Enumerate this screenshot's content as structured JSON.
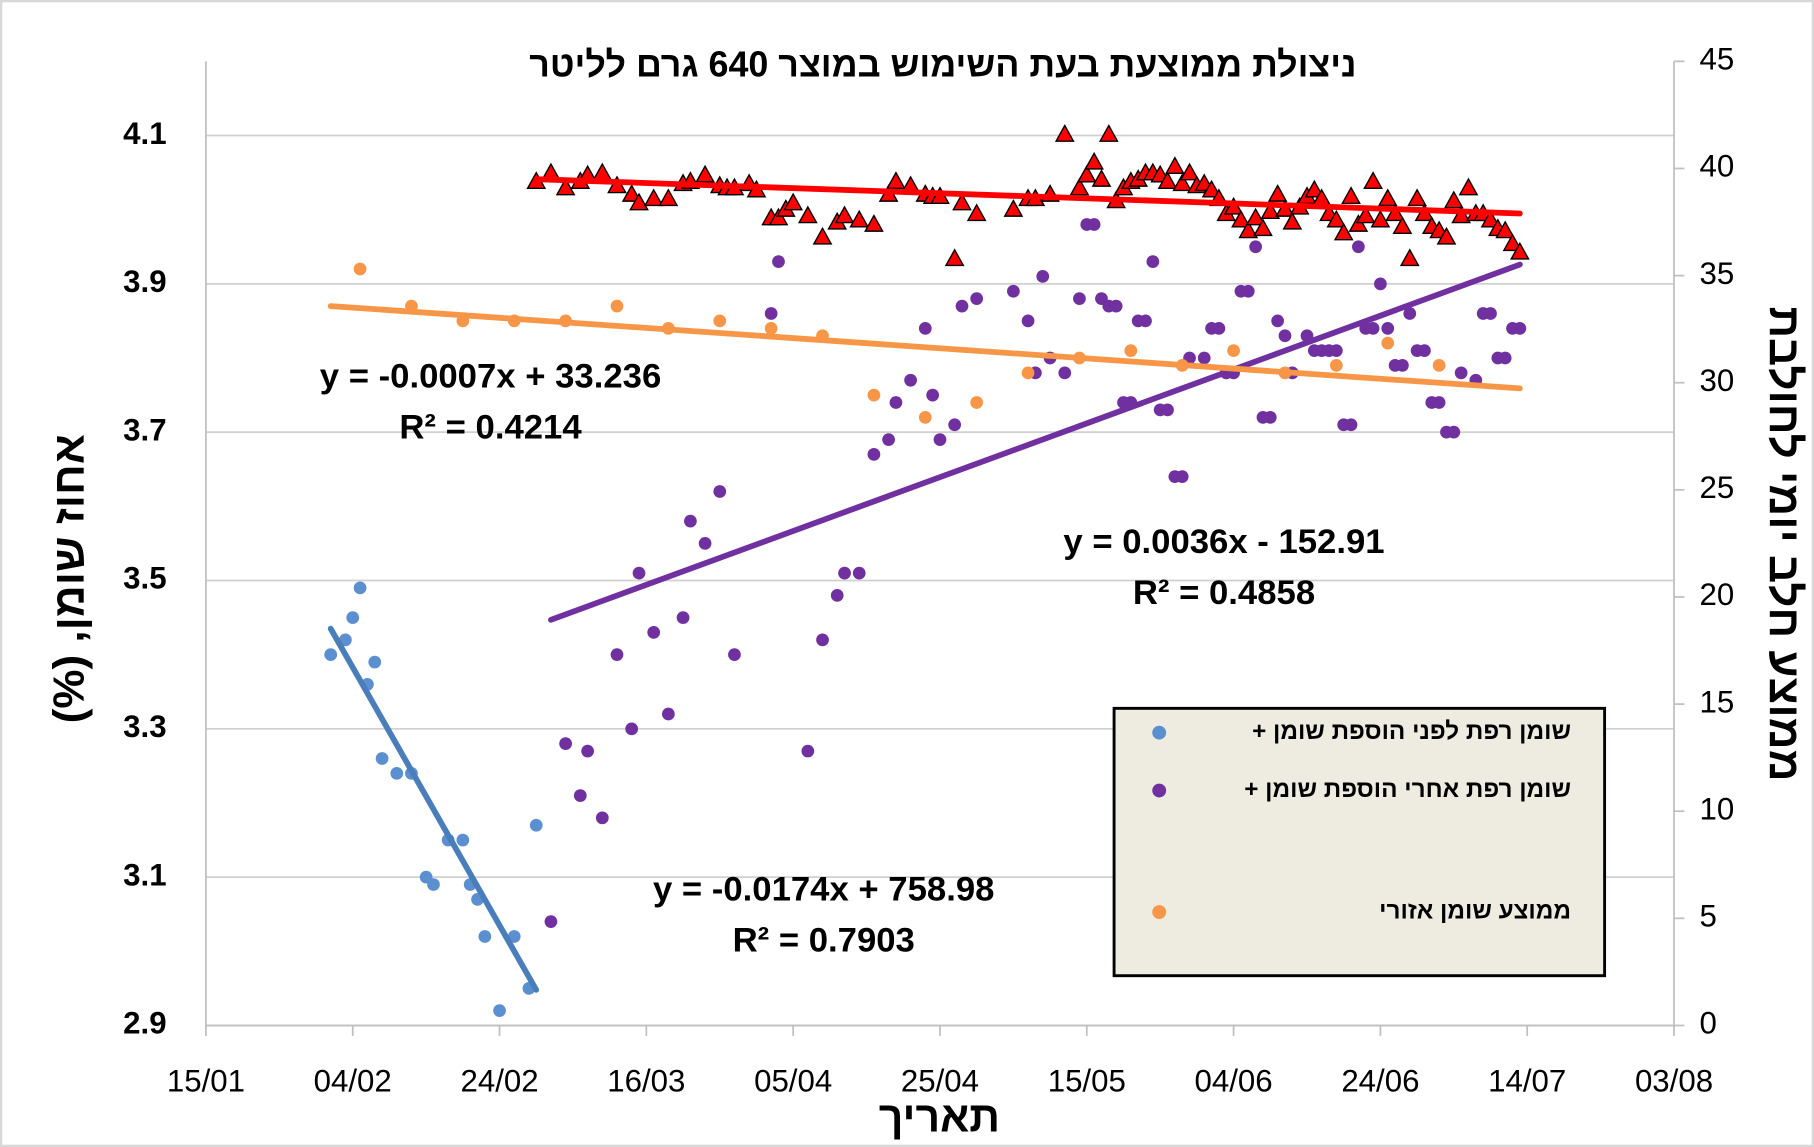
{
  "chart_data": {
    "type": "scatter",
    "title": "ניצולת ממוצעת בעת השימוש במוצר 640 גרם לליטר",
    "xlabel": "תאריך",
    "ylabel": "אחוז שומן, (%)",
    "y2label": "ממוצע חלב יומי לחולבת",
    "xlim": [
      "15/01",
      "03/08"
    ],
    "xticks": [
      "15/01",
      "04/02",
      "24/02",
      "16/03",
      "05/04",
      "25/04",
      "15/05",
      "04/06",
      "24/06",
      "14/07",
      "03/08"
    ],
    "ylim": [
      2.9,
      4.2
    ],
    "yticks": [
      2.9,
      3.1,
      3.3,
      3.5,
      3.7,
      3.9,
      4.1
    ],
    "y2lim": [
      0,
      45
    ],
    "y2ticks": [
      0,
      5,
      10,
      15,
      20,
      25,
      30,
      35,
      40,
      45
    ],
    "grid": true,
    "series": [
      {
        "name": "שומן רפת לפני הוספת שומן +",
        "color": "#5b8fd0",
        "marker": "circle",
        "x": [
          "01/02",
          "03/02",
          "04/02",
          "05/02",
          "06/02",
          "07/02",
          "08/02",
          "10/02",
          "12/02",
          "17/02",
          "14/02",
          "15/02",
          "19/02",
          "20/02",
          "21/02",
          "22/02",
          "24/02",
          "26/02",
          "28/02",
          "01/03"
        ],
        "values": [
          3.4,
          3.42,
          3.45,
          3.49,
          3.36,
          3.39,
          3.26,
          3.24,
          3.24,
          3.15,
          3.1,
          3.09,
          3.15,
          3.09,
          3.07,
          3.02,
          2.92,
          3.02,
          2.95,
          3.17
        ],
        "trendline": {
          "color": "#4a7ebb",
          "x": [
            "01/02",
            "01/03"
          ],
          "values": [
            3.435,
            2.948
          ],
          "equation": "y = -0.0174x + 758.98",
          "r2": "R² = 0.7903"
        }
      },
      {
        "name": "שומן רפת אחרי הוספת שומן +",
        "color": "#7030a0",
        "marker": "circle",
        "x": [
          "03/03",
          "05/03",
          "07/03",
          "08/03",
          "10/03",
          "12/03",
          "14/03",
          "15/03",
          "17/03",
          "19/03",
          "21/03",
          "22/03",
          "24/03",
          "26/03",
          "28/03",
          "02/04",
          "03/04",
          "07/04",
          "09/04",
          "11/04",
          "12/04",
          "14/04",
          "16/04",
          "18/04",
          "19/04",
          "21/04",
          "23/04",
          "24/04",
          "25/04",
          "27/04",
          "28/04",
          "30/04",
          "05/05",
          "07/05",
          "08/05",
          "09/05",
          "10/05",
          "12/05",
          "14/05",
          "15/05",
          "16/05",
          "17/05",
          "18/05",
          "19/05",
          "20/05",
          "21/05",
          "22/05",
          "23/05",
          "24/05",
          "25/05",
          "26/05",
          "27/05",
          "28/05",
          "29/05",
          "31/05",
          "01/06",
          "02/06",
          "03/06",
          "04/06",
          "05/06",
          "06/06",
          "07/06",
          "08/06",
          "09/06",
          "10/06",
          "11/06",
          "12/06",
          "14/06",
          "15/06",
          "16/06",
          "17/06",
          "18/06",
          "19/06",
          "20/06",
          "21/06",
          "22/06",
          "23/06",
          "24/06",
          "25/06",
          "26/06",
          "27/06",
          "28/06",
          "29/06",
          "30/06",
          "01/07",
          "02/07",
          "03/07",
          "04/07",
          "05/07",
          "07/07",
          "08/07",
          "09/07",
          "10/07",
          "11/07",
          "12/07",
          "13/07"
        ],
        "values": [
          3.04,
          3.28,
          3.21,
          3.27,
          3.18,
          3.4,
          3.3,
          3.51,
          3.43,
          3.32,
          3.45,
          3.58,
          3.55,
          3.62,
          3.4,
          3.86,
          3.93,
          3.27,
          3.42,
          3.48,
          3.51,
          3.51,
          3.67,
          3.69,
          3.74,
          3.77,
          3.84,
          3.75,
          3.69,
          3.71,
          3.87,
          3.88,
          3.89,
          3.85,
          3.78,
          3.91,
          3.8,
          3.78,
          3.88,
          3.98,
          3.98,
          3.88,
          3.87,
          3.87,
          3.74,
          3.74,
          3.85,
          3.85,
          3.93,
          3.73,
          3.73,
          3.64,
          3.64,
          3.8,
          3.8,
          3.84,
          3.84,
          3.78,
          3.78,
          3.89,
          3.89,
          3.95,
          3.72,
          3.72,
          3.85,
          3.83,
          3.78,
          3.83,
          3.81,
          3.81,
          3.81,
          3.81,
          3.71,
          3.71,
          3.95,
          3.84,
          3.84,
          3.9,
          3.84,
          3.79,
          3.79,
          3.86,
          3.81,
          3.81,
          3.74,
          3.74,
          3.7,
          3.7,
          3.78,
          3.77,
          3.86,
          3.86,
          3.8,
          3.8,
          3.84,
          3.84
        ],
        "trendline": {
          "color": "#7030a0",
          "x": [
            "03/03",
            "13/07"
          ],
          "values": [
            3.447,
            3.926
          ],
          "equation": "y = 0.0036x - 152.91",
          "r2": "R² = 0.4858"
        }
      },
      {
        "name": "ממוצע שומן אזורי",
        "color": "#f79646",
        "marker": "circle",
        "x": [
          "05/02",
          "12/02",
          "19/02",
          "26/02",
          "05/03",
          "12/03",
          "19/03",
          "26/03",
          "02/04",
          "09/04",
          "16/04",
          "23/04",
          "30/04",
          "07/05",
          "14/05",
          "21/05",
          "28/05",
          "04/06",
          "11/06",
          "18/06",
          "25/06",
          "02/07"
        ],
        "values": [
          3.92,
          3.87,
          3.85,
          3.85,
          3.85,
          3.87,
          3.84,
          3.85,
          3.84,
          3.83,
          3.75,
          3.72,
          3.74,
          3.78,
          3.8,
          3.81,
          3.79,
          3.81,
          3.78,
          3.79,
          3.82,
          3.79
        ],
        "trendline": {
          "color": "#f79646",
          "x": [
            "01/02",
            "13/07"
          ],
          "values": [
            3.87,
            3.759
          ],
          "equation": "y = -0.0007x + 33.236",
          "r2": "R² = 0.4214"
        }
      },
      {
        "color": "#ff0000",
        "marker": "triangle",
        "axis": "y2",
        "x": [
          "01/03",
          "03/03",
          "05/03",
          "07/03",
          "08/03",
          "10/03",
          "12/03",
          "14/03",
          "15/03",
          "17/03",
          "19/03",
          "21/03",
          "22/03",
          "24/03",
          "26/03",
          "27/03",
          "28/03",
          "30/03",
          "31/03",
          "02/04",
          "03/04",
          "04/04",
          "05/04",
          "07/04",
          "09/04",
          "11/04",
          "12/04",
          "14/04",
          "16/04",
          "18/04",
          "19/04",
          "21/04",
          "23/04",
          "24/04",
          "25/04",
          "27/04",
          "28/04",
          "30/04",
          "05/05",
          "07/05",
          "08/05",
          "10/05",
          "12/05",
          "14/05",
          "15/05",
          "16/05",
          "17/05",
          "18/05",
          "19/05",
          "20/05",
          "21/05",
          "22/05",
          "23/05",
          "24/05",
          "25/05",
          "26/05",
          "27/05",
          "28/05",
          "29/05",
          "30/05",
          "31/05",
          "01/06",
          "02/06",
          "03/06",
          "04/06",
          "05/06",
          "06/06",
          "07/06",
          "08/06",
          "09/06",
          "10/06",
          "11/06",
          "12/06",
          "13/06",
          "14/06",
          "15/06",
          "16/06",
          "17/06",
          "18/06",
          "19/06",
          "20/06",
          "21/06",
          "22/06",
          "23/06",
          "24/06",
          "25/06",
          "26/06",
          "27/06",
          "28/06",
          "29/06",
          "30/06",
          "01/07",
          "02/07",
          "03/07",
          "04/07",
          "05/07",
          "06/07",
          "07/07",
          "08/07",
          "09/07",
          "10/07",
          "11/07",
          "12/07",
          "13/07"
        ],
        "values": [
          39.4,
          39.8,
          39.1,
          39.4,
          39.7,
          39.8,
          39.2,
          38.8,
          38.4,
          38.6,
          38.6,
          39.3,
          39.4,
          39.7,
          39.2,
          39.1,
          39.1,
          39.3,
          39.0,
          37.7,
          37.7,
          38.1,
          38.4,
          37.8,
          36.8,
          37.5,
          37.8,
          37.6,
          37.4,
          38.8,
          39.4,
          39.2,
          38.8,
          38.7,
          38.7,
          35.8,
          38.4,
          37.9,
          38.1,
          38.6,
          38.6,
          38.8,
          41.6,
          39.1,
          39.7,
          40.3,
          39.5,
          41.6,
          38.5,
          39.1,
          39.4,
          39.5,
          39.8,
          39.8,
          39.7,
          39.4,
          40.1,
          39.3,
          39.8,
          39.2,
          39.3,
          39.0,
          38.6,
          37.9,
          38.2,
          37.6,
          37.1,
          37.7,
          37.2,
          38.0,
          38.8,
          38.1,
          37.5,
          38.2,
          38.7,
          39.0,
          38.6,
          37.9,
          37.6,
          37.0,
          38.7,
          37.4,
          37.8,
          39.4,
          37.6,
          38.6,
          37.9,
          37.3,
          35.8,
          38.6,
          37.9,
          37.3,
          37.1,
          36.8,
          38.5,
          37.8,
          39.1,
          37.9,
          37.9,
          37.6,
          37.2,
          37.1,
          36.5,
          36.1
        ],
        "trendline": {
          "color": "#ff0000",
          "x": [
            "01/03",
            "13/07"
          ],
          "values": [
            39.5,
            37.9
          ]
        }
      }
    ]
  }
}
